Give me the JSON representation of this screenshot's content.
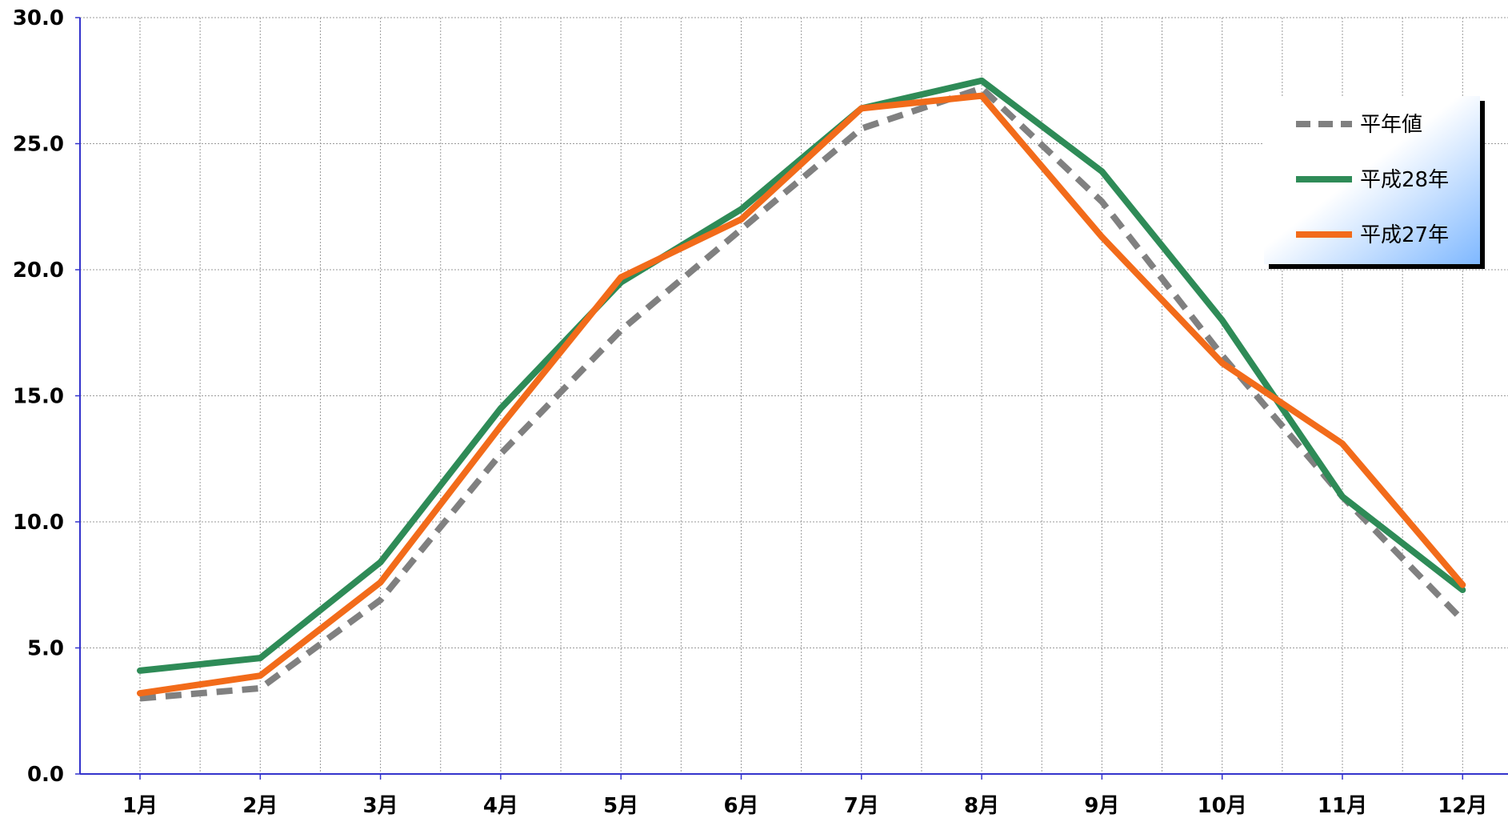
{
  "chart_data": {
    "type": "line",
    "title": "",
    "xlabel": "",
    "ylabel": "",
    "categories": [
      "1月",
      "2月",
      "3月",
      "4月",
      "5月",
      "6月",
      "7月",
      "8月",
      "9月",
      "10月",
      "11月",
      "12月"
    ],
    "ylim": [
      0,
      30
    ],
    "yticks": [
      "0.0",
      "5.0",
      "10.0",
      "15.0",
      "20.0",
      "25.0",
      "30.0"
    ],
    "grid": true,
    "legend_position": "top-right",
    "series": [
      {
        "name": "平年値",
        "color": "#808080",
        "style": "dashed",
        "values": [
          3.0,
          3.4,
          6.9,
          12.7,
          17.6,
          21.6,
          25.6,
          27.2,
          22.7,
          16.6,
          11.0,
          6.1
        ]
      },
      {
        "name": "平成28年",
        "color": "#2E8B57",
        "style": "solid",
        "values": [
          4.1,
          4.6,
          8.4,
          14.5,
          19.5,
          22.4,
          26.4,
          27.5,
          23.9,
          18.0,
          11.0,
          7.3
        ]
      },
      {
        "name": "平成27年",
        "color": "#F26B1A",
        "style": "solid",
        "values": [
          3.2,
          3.9,
          7.6,
          13.8,
          19.7,
          22.0,
          26.4,
          26.9,
          21.3,
          16.3,
          13.1,
          7.5
        ]
      }
    ]
  }
}
